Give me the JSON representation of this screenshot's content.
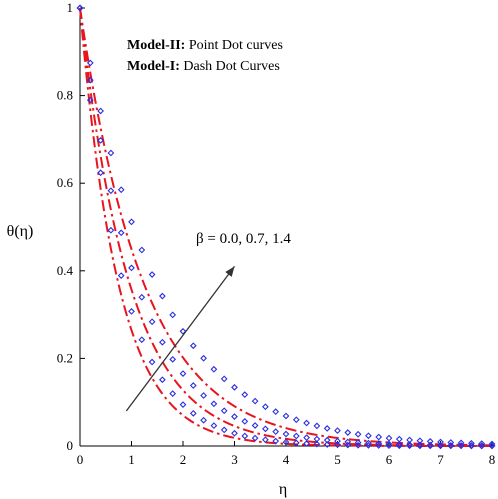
{
  "chart_data": {
    "type": "line",
    "xlabel": "η",
    "ylabel": "θ(η)",
    "xlim": [
      0,
      8
    ],
    "ylim": [
      0,
      1
    ],
    "xticks": [
      0,
      1,
      2,
      3,
      4,
      5,
      6,
      7,
      8
    ],
    "yticks": [
      0,
      0.2,
      0.4,
      0.6,
      0.8,
      1
    ],
    "grid": false,
    "legend": {
      "placement": "top-center",
      "entries": [
        {
          "bold": "Model-II:",
          "text": " Point Dot curves"
        },
        {
          "bold": "Model-I:",
          "text": " Dash Dot Curves"
        }
      ]
    },
    "annotation": {
      "text": "β = 0.0, 0.7, 1.4",
      "arrow_from": [
        0.9,
        0.08
      ],
      "arrow_to": [
        3.0,
        0.41
      ]
    },
    "colors": {
      "model_I": "#e8141e",
      "model_II": "#2a2ee0"
    },
    "series": [
      {
        "model": "Model-I",
        "style": "dash-dot",
        "beta": "0.0",
        "decay_rate": 1.33
      },
      {
        "model": "Model-I",
        "style": "dash-dot",
        "beta": "0.7",
        "decay_rate": 1.03
      },
      {
        "model": "Model-I",
        "style": "dash-dot",
        "beta": "1.4",
        "decay_rate": 0.8
      },
      {
        "model": "Model-II",
        "style": "point-dot",
        "beta": "0.0",
        "decay_rate": 1.18
      },
      {
        "model": "Model-II",
        "style": "point-dot",
        "beta": "0.7",
        "decay_rate": 0.9
      },
      {
        "model": "Model-II",
        "style": "point-dot",
        "beta": "1.4",
        "decay_rate": 0.67
      }
    ]
  }
}
